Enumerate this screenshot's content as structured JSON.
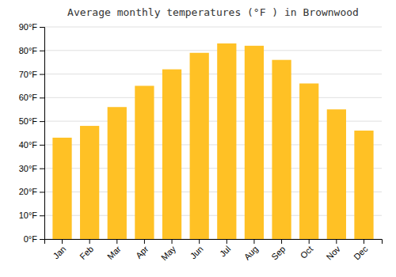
{
  "chart_data": {
    "type": "bar",
    "title": "Average monthly temperatures (°F ) in Brownwood",
    "categories": [
      "Jan",
      "Feb",
      "Mar",
      "Apr",
      "May",
      "Jun",
      "Jul",
      "Aug",
      "Sep",
      "Oct",
      "Nov",
      "Dec"
    ],
    "values": [
      43,
      48,
      56,
      65,
      72,
      79,
      83,
      82,
      76,
      66,
      55,
      46
    ],
    "color": "#FFC125",
    "ylim": [
      0,
      90
    ],
    "yticks": [
      {
        "value": 0,
        "label": "0°F"
      },
      {
        "value": 10,
        "label": "10°F"
      },
      {
        "value": 20,
        "label": "20°F"
      },
      {
        "value": 30,
        "label": "30°F"
      },
      {
        "value": 40,
        "label": "40°F"
      },
      {
        "value": 50,
        "label": "50°F"
      },
      {
        "value": 60,
        "label": "60°F"
      },
      {
        "value": 70,
        "label": "70°F"
      },
      {
        "value": 80,
        "label": "80°F"
      },
      {
        "value": 90,
        "label": "90°F"
      }
    ],
    "grid": true
  }
}
